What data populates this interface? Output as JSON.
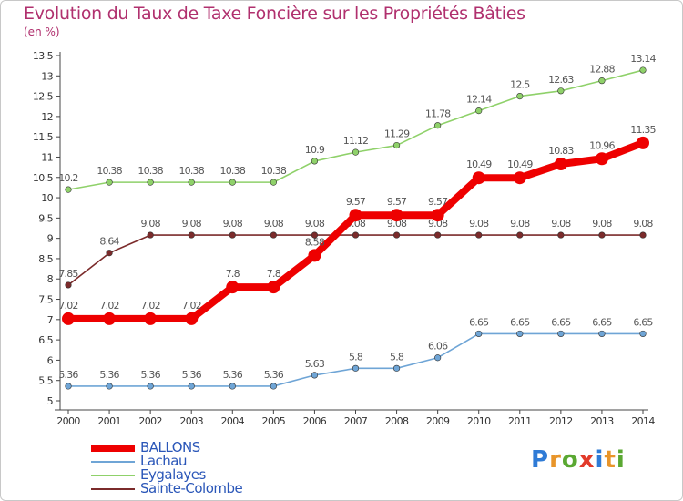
{
  "title": "Evolution du Taux de Taxe Foncière sur les Propriétés Bâties",
  "unit": "(en %)",
  "brand": {
    "text": "Proxiti",
    "colors": [
      "#2f7bd6",
      "#e8952a",
      "#5aa832",
      "#e23a2a",
      "#2f7bd6",
      "#e8952a",
      "#5aa832"
    ]
  },
  "chart_data": {
    "type": "line",
    "x": [
      "2000",
      "2001",
      "2002",
      "2003",
      "2004",
      "2005",
      "2006",
      "2007",
      "2008",
      "2009",
      "2010",
      "2011",
      "2012",
      "2013",
      "2014"
    ],
    "ylim": [
      5,
      13.5
    ],
    "yticks": [
      "5",
      "5.5",
      "6",
      "6.5",
      "7",
      "7.5",
      "8",
      "8.5",
      "9",
      "9.5",
      "10",
      "10.5",
      "11",
      "11.5",
      "12",
      "12.5",
      "13",
      "13.5"
    ],
    "grid": false,
    "legend": "bottom-left",
    "series": [
      {
        "name": "Eygalayes",
        "color": "#8fd16a",
        "values": [
          10.2,
          10.38,
          10.38,
          10.38,
          10.38,
          10.38,
          10.9,
          11.12,
          11.29,
          11.78,
          12.14,
          12.5,
          12.63,
          12.88,
          13.14
        ],
        "labels": [
          "10.2",
          "10.38",
          "10.38",
          "10.38",
          "10.38",
          "10.38",
          "10.9",
          "11.12",
          "11.29",
          "11.78",
          "12.14",
          "12.5",
          "12.63",
          "12.88",
          "13.14"
        ]
      },
      {
        "name": "Sainte-Colombe",
        "color": "#7b2b2b",
        "values": [
          7.85,
          8.64,
          9.08,
          9.08,
          9.08,
          9.08,
          9.08,
          9.08,
          9.08,
          9.08,
          9.08,
          9.08,
          9.08,
          9.08,
          9.08
        ],
        "labels": [
          "7.85",
          "8.64",
          "9.08",
          "9.08",
          "9.08",
          "9.08",
          "9.08",
          "9.08",
          "9.08",
          "9.08",
          "9.08",
          "9.08",
          "9.08",
          "9.08",
          "9.08"
        ]
      },
      {
        "name": "Lachau",
        "color": "#6fa5d6",
        "values": [
          5.36,
          5.36,
          5.36,
          5.36,
          5.36,
          5.36,
          5.63,
          5.8,
          5.8,
          6.06,
          6.65,
          6.65,
          6.65,
          6.65,
          6.65
        ],
        "labels": [
          "5.36",
          "5.36",
          "5.36",
          "5.36",
          "5.36",
          "5.36",
          "5.63",
          "5.8",
          "5.8",
          "6.06",
          "6.65",
          "6.65",
          "6.65",
          "6.65",
          "6.65"
        ]
      },
      {
        "name": "BALLONS",
        "color": "#ee0000",
        "values": [
          7.02,
          7.02,
          7.02,
          7.02,
          7.8,
          7.8,
          8.58,
          9.57,
          9.57,
          9.57,
          10.49,
          10.49,
          10.83,
          10.96,
          11.35
        ],
        "labels": [
          "7.02",
          "7.02",
          "7.02",
          "7.02",
          "7.8",
          "7.8",
          "8.58",
          "9.57",
          "9.57",
          "9.57",
          "10.49",
          "10.49",
          "10.83",
          "10.96",
          "11.35"
        ]
      }
    ]
  },
  "legend_items": [
    {
      "name": "BALLONS",
      "color": "#ee0000"
    },
    {
      "name": "Lachau",
      "color": "#6fa5d6"
    },
    {
      "name": "Eygalayes",
      "color": "#8fd16a"
    },
    {
      "name": "Sainte-Colombe",
      "color": "#7b2b2b"
    }
  ]
}
